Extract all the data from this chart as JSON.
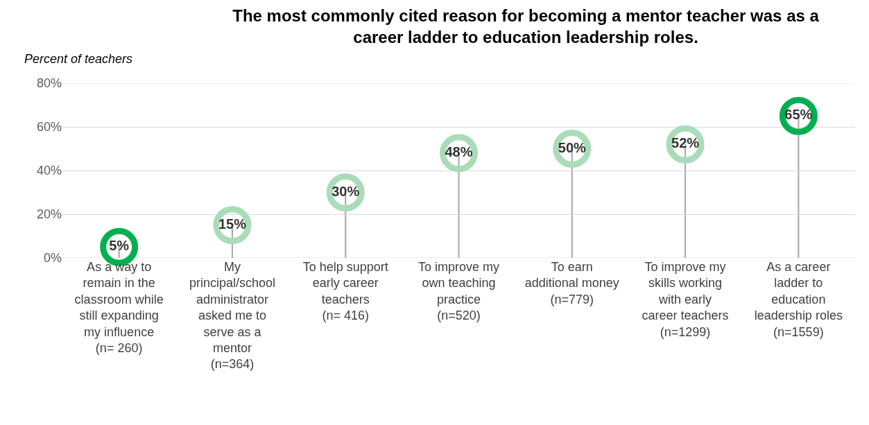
{
  "chart_data": {
    "type": "lollipop",
    "title": "The most commonly cited reason for becoming a mentor teacher was as a career ladder to education leadership roles.",
    "ylabel": "Percent of teachers",
    "categories": [
      "As a way to remain in the classroom while still expanding my influence (n= 260)",
      "My principal/school administrator asked me to serve as a mentor (n=364)",
      "To help support early career teachers (n= 416)",
      "To improve my own teaching practice (n=520)",
      "To earn additional money (n=779)",
      "To improve my skills working with early career teachers (n=1299)",
      "As a career ladder to education leadership roles (n=1559)"
    ],
    "values": [
      5,
      15,
      30,
      48,
      50,
      52,
      65
    ],
    "value_labels": [
      "5%",
      "15%",
      "30%",
      "48%",
      "50%",
      "52%",
      "65%"
    ],
    "colors": [
      "#00b050",
      "#a9dcb8",
      "#a9dcb8",
      "#a9dcb8",
      "#a9dcb8",
      "#a9dcb8",
      "#00b050"
    ],
    "ylim": [
      0,
      80
    ],
    "yticks": [
      {
        "value": 0,
        "label": "0%"
      },
      {
        "value": 20,
        "label": "20%"
      },
      {
        "value": 40,
        "label": "40%"
      },
      {
        "value": 60,
        "label": "60%"
      },
      {
        "value": 80,
        "label": "80%"
      }
    ],
    "grid": "y",
    "marker": "circle"
  }
}
